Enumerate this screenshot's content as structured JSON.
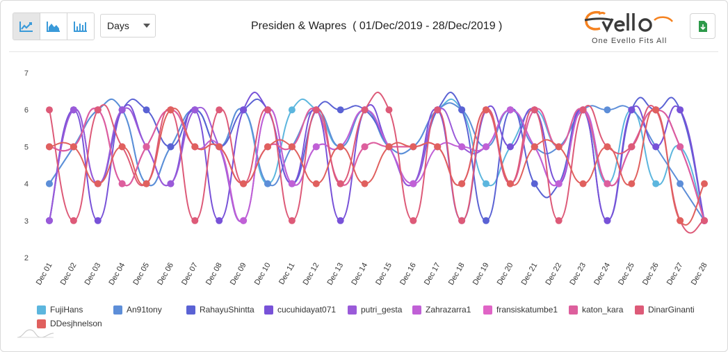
{
  "toolbar": {
    "chart_types": [
      {
        "name": "line-chart-icon",
        "active": true
      },
      {
        "name": "area-chart-icon",
        "active": false
      },
      {
        "name": "bar-chart-icon",
        "active": false
      }
    ],
    "period_select": "Days",
    "title": "Presiden & Wapres  ( 01/Dec/2019 - 28/Dec/2019 )"
  },
  "logo": {
    "name": "Evello",
    "tagline": "One Evello Fits All",
    "accent": "#f58220"
  },
  "chart_data": {
    "type": "line",
    "smooth": true,
    "categories": [
      "Dec 01",
      "Dec 02",
      "Dec 03",
      "Dec 04",
      "Dec 05",
      "Dec 06",
      "Dec 07",
      "Dec 08",
      "Dec 09",
      "Dec 10",
      "Dec 11",
      "Dec 12",
      "Dec 13",
      "Dec 14",
      "Dec 15",
      "Dec 16",
      "Dec 17",
      "Dec 18",
      "Dec 19",
      "Dec 20",
      "Dec 21",
      "Dec 22",
      "Dec 23",
      "Dec 24",
      "Dec 25",
      "Dec 26",
      "Dec 27",
      "Dec 28"
    ],
    "ylim": [
      2,
      7
    ],
    "yticks": [
      2,
      3,
      4,
      5,
      6,
      7
    ],
    "grid": false,
    "legend_position": "bottom",
    "series": [
      {
        "name": "FujiHans",
        "color": "#5cb6de",
        "values": [
          4,
          5,
          6,
          6,
          4,
          5,
          6,
          5,
          6,
          4,
          6,
          6,
          5,
          6,
          5,
          5,
          6,
          6,
          4,
          5,
          6,
          5,
          6,
          4,
          6,
          4,
          5,
          3
        ]
      },
      {
        "name": "An91tony",
        "color": "#5d8ed8",
        "values": [
          4,
          5,
          6,
          6,
          4,
          5,
          6,
          5,
          6,
          4,
          5,
          6,
          5,
          6,
          5,
          5,
          6,
          6,
          5,
          6,
          5,
          5,
          6,
          6,
          6,
          5,
          4,
          3
        ]
      },
      {
        "name": "RahayuShintta",
        "color": "#5a62d4",
        "values": [
          3,
          6,
          4,
          6,
          6,
          5,
          6,
          5,
          6,
          6,
          4,
          6,
          6,
          6,
          5,
          4,
          6,
          6,
          3,
          6,
          4,
          4,
          6,
          3,
          6,
          6,
          6,
          3
        ]
      },
      {
        "name": "cucuhidayat071",
        "color": "#7852d8",
        "values": [
          3,
          6,
          3,
          6,
          5,
          4,
          6,
          3,
          6,
          6,
          4,
          6,
          3,
          6,
          5,
          4,
          6,
          3,
          6,
          5,
          6,
          4,
          6,
          3,
          6,
          5,
          6,
          3
        ]
      },
      {
        "name": "putri_gesta",
        "color": "#9a5ad9",
        "values": [
          3,
          6,
          4,
          6,
          5,
          4,
          6,
          5,
          3,
          6,
          4,
          5,
          5,
          6,
          5,
          4,
          6,
          5,
          5,
          6,
          5,
          4,
          6,
          4,
          5,
          6,
          5,
          3
        ]
      },
      {
        "name": "Zahrazarra1",
        "color": "#c060d6",
        "values": [
          5,
          5,
          6,
          4,
          5,
          6,
          5,
          5,
          3,
          6,
          4,
          5,
          5,
          6,
          5,
          4,
          5,
          5,
          5,
          6,
          5,
          4,
          6,
          4,
          5,
          6,
          5,
          3
        ]
      },
      {
        "name": "fransiskatumbe1",
        "color": "#e064c6",
        "values": [
          5,
          5,
          6,
          4,
          5,
          6,
          5,
          5,
          4,
          5,
          5,
          6,
          4,
          5,
          5,
          5,
          5,
          4,
          6,
          4,
          6,
          5,
          6,
          4,
          5,
          6,
          5,
          3
        ]
      },
      {
        "name": "katon_kara",
        "color": "#dd5f9d",
        "values": [
          5,
          5,
          6,
          4,
          5,
          6,
          5,
          5,
          4,
          5,
          5,
          6,
          4,
          5,
          5,
          5,
          5,
          4,
          6,
          4,
          6,
          5,
          6,
          4,
          5,
          6,
          5,
          3
        ]
      },
      {
        "name": "DinarGinanti",
        "color": "#dd5a78",
        "values": [
          6,
          3,
          6,
          5,
          4,
          6,
          3,
          6,
          4,
          6,
          3,
          6,
          4,
          6,
          6,
          3,
          6,
          3,
          6,
          4,
          6,
          3,
          6,
          5,
          5,
          6,
          3,
          3
        ]
      },
      {
        "name": "DDesjhnelson",
        "color": "#e0605e",
        "values": [
          5,
          5,
          4,
          5,
          4,
          6,
          5,
          5,
          4,
          5,
          5,
          4,
          5,
          4,
          5,
          5,
          5,
          4,
          6,
          4,
          5,
          5,
          4,
          5,
          4,
          6,
          3,
          4
        ]
      }
    ]
  }
}
